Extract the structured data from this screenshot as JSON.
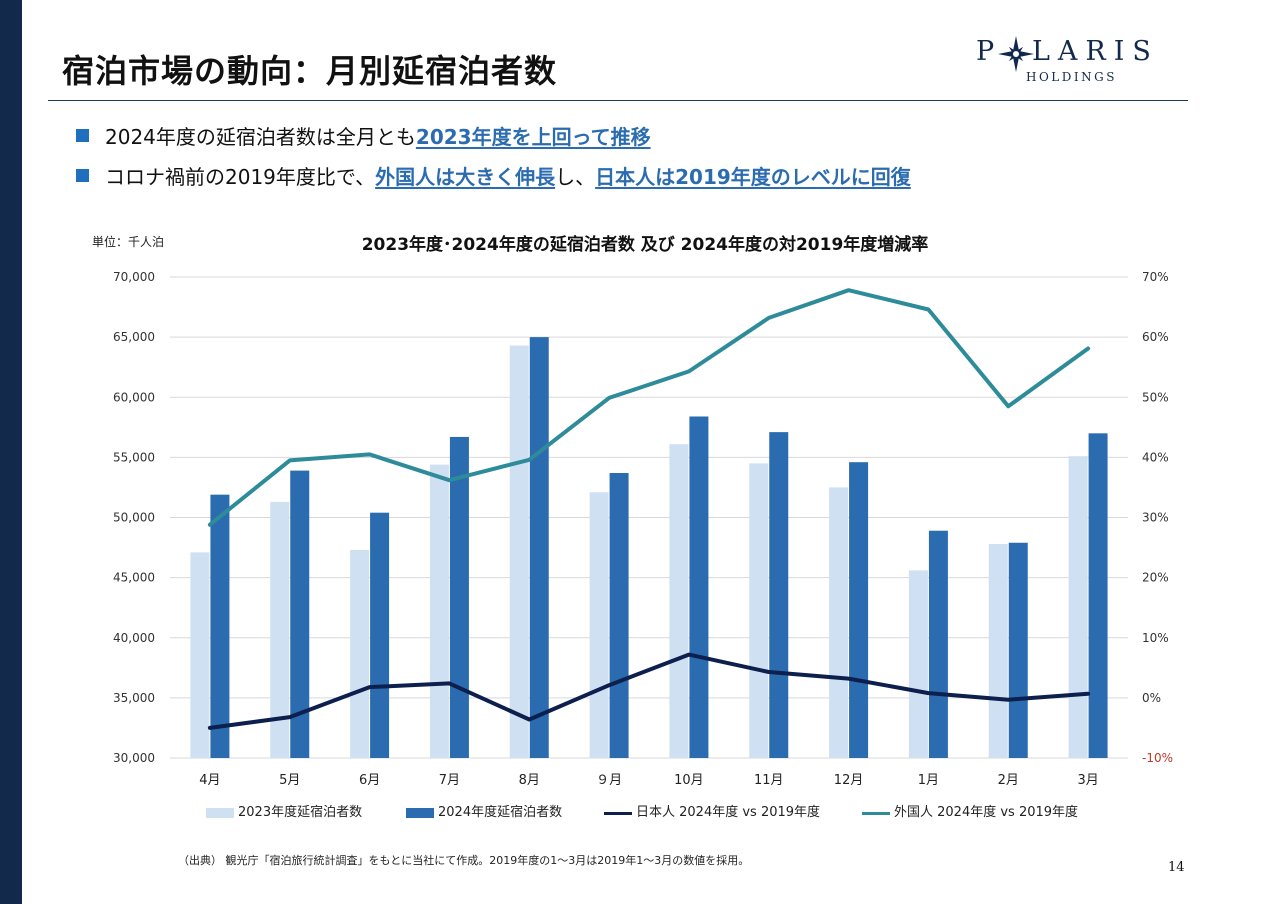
{
  "page": {
    "title": "宿泊市場の動向：月別延宿泊者数",
    "logo": {
      "brand_p": "P",
      "brand_rest": "LARIS",
      "sub": "HOLDINGS",
      "icon": "compass-star-icon"
    },
    "bullets": [
      {
        "prefix": "2024年度の延宿泊者数は全月とも",
        "em1": "2023年度を上回って推移",
        "mid": "",
        "em2": "",
        "suffix": ""
      },
      {
        "prefix": "コロナ禍前の2019年度比で、",
        "em1": "外国人は大きく伸長",
        "mid": "し、",
        "em2": "日本人は2019年度のレベルに回復",
        "suffix": ""
      }
    ],
    "source_note": "（出典） 観光庁「宿泊旅行統計調査」をもとに当社にて作成。2019年度の1～3月は2019年1～3月の数値を採用。",
    "page_number": "14",
    "colors": {
      "sidebar": "#13294b",
      "accent": "#2b6cb0",
      "bullet": "#1f6fbf"
    }
  },
  "chart_data": {
    "type": "bar",
    "title": "2023年度･2024年度の延宿泊者数 及び 2024年度の対2019年度増減率",
    "unit_label": "単位：千人泊",
    "categories": [
      "4月",
      "5月",
      "6月",
      "7月",
      "8月",
      "９月",
      "10月",
      "11月",
      "12月",
      "1月",
      "2月",
      "3月"
    ],
    "ylim": [
      30000,
      70000
    ],
    "y_ticks": [
      "30,000",
      "35,000",
      "40,000",
      "45,000",
      "50,000",
      "55,000",
      "60,000",
      "65,000",
      "70,000"
    ],
    "y2lim": [
      -10,
      70
    ],
    "y2_ticks": [
      "-10%",
      "0%",
      "10%",
      "20%",
      "30%",
      "40%",
      "50%",
      "60%",
      "70%"
    ],
    "grid": true,
    "legend_position": "bottom",
    "series": [
      {
        "name": "2023年度延宿泊者数",
        "kind": "bar",
        "axis": "left",
        "color": "#cfe0f3",
        "values": [
          47100,
          51300,
          47300,
          54400,
          64300,
          52100,
          56100,
          54500,
          52500,
          45600,
          47800,
          55100
        ]
      },
      {
        "name": "2024年度延宿泊者数",
        "kind": "bar",
        "axis": "left",
        "color": "#2b6cb0",
        "values": [
          51900,
          53900,
          50400,
          56700,
          65000,
          53700,
          58400,
          57100,
          54600,
          48900,
          47900,
          57000
        ]
      },
      {
        "name": "日本人 2024年度 vs 2019年度",
        "kind": "line",
        "axis": "right",
        "color": "#0d1f4d",
        "values": [
          -5.0,
          -3.2,
          1.8,
          2.4,
          -3.6,
          2.1,
          7.2,
          4.3,
          3.2,
          0.8,
          -0.3,
          0.7
        ]
      },
      {
        "name": "外国人 2024年度 vs 2019年度",
        "kind": "line",
        "axis": "right",
        "color": "#2e8b9a",
        "values": [
          28.8,
          39.5,
          40.5,
          36.2,
          39.6,
          49.9,
          54.3,
          63.2,
          67.8,
          64.6,
          48.5,
          58.1
        ]
      }
    ],
    "negative_tick_color": "#c0392b",
    "tick_color": "#333333",
    "grid_color": "#d9d9d9"
  }
}
